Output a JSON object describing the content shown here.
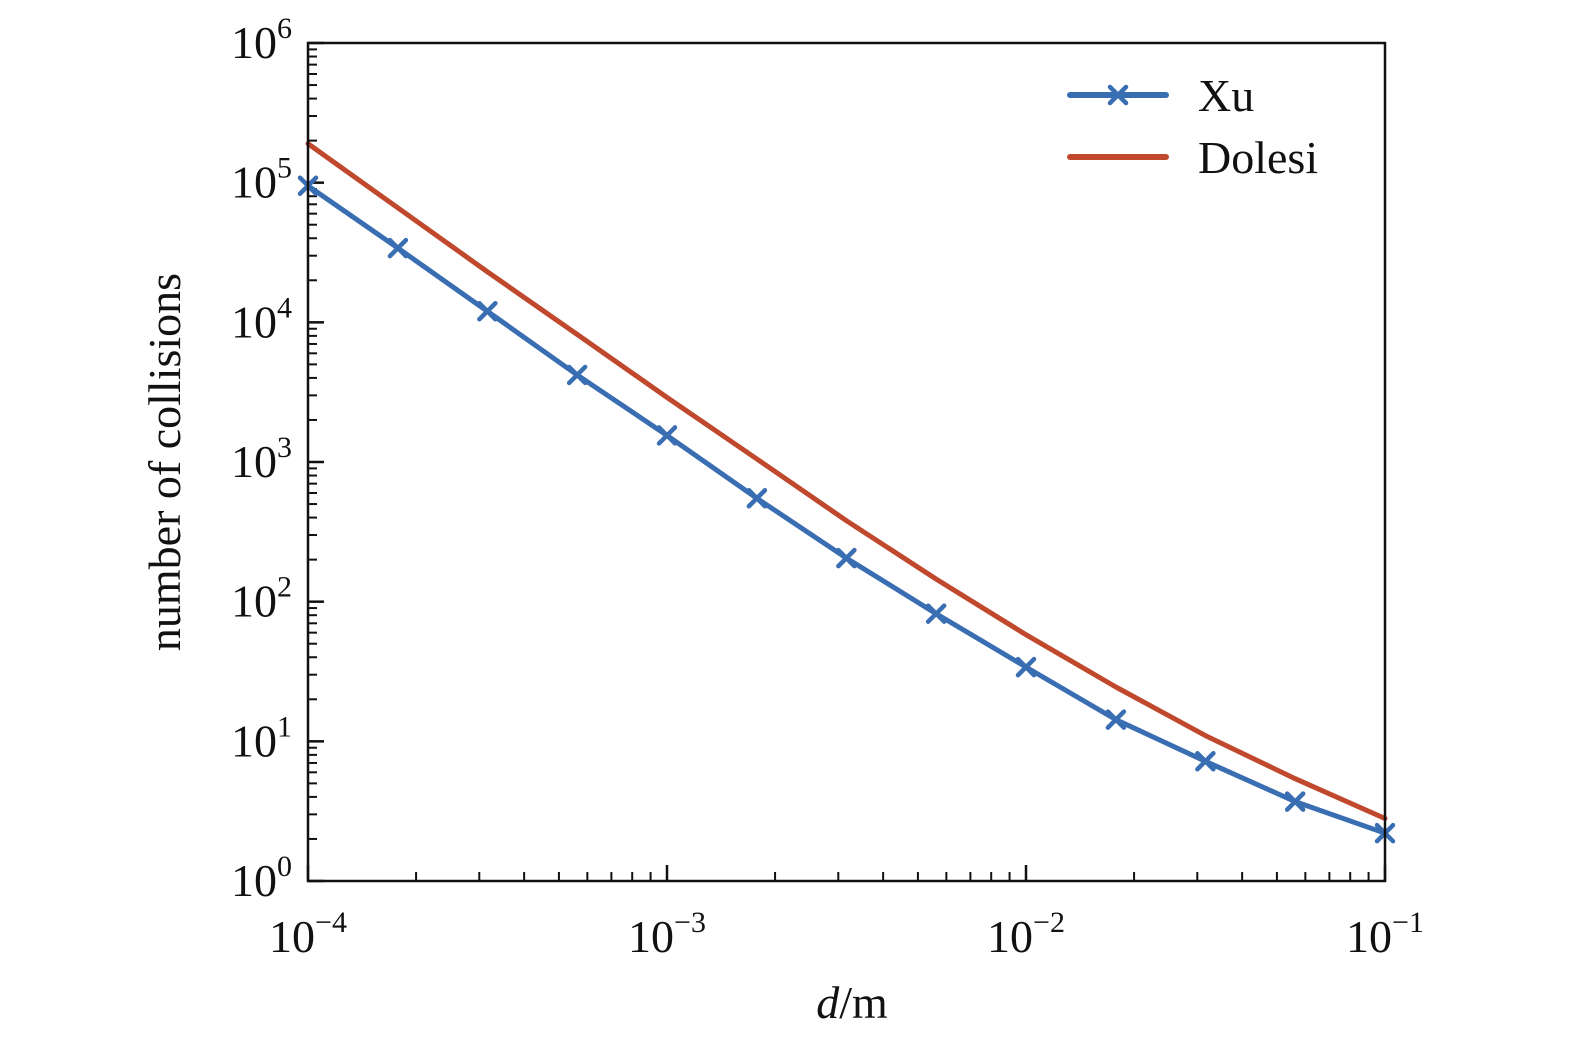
{
  "chart_data": {
    "type": "line",
    "x_scale": "log",
    "y_scale": "log",
    "xlabel": "d/m",
    "xlabel_parts": {
      "italic": "d",
      "rest": "/m"
    },
    "ylabel": "number of collisions",
    "xlim": [
      0.0001,
      0.1
    ],
    "ylim": [
      1,
      1000000
    ],
    "x_ticks": [
      {
        "value": 0.0001,
        "base": "10",
        "exp": "−4"
      },
      {
        "value": 0.001,
        "base": "10",
        "exp": "−3"
      },
      {
        "value": 0.01,
        "base": "10",
        "exp": "−2"
      },
      {
        "value": 0.1,
        "base": "10",
        "exp": "−1"
      }
    ],
    "y_ticks": [
      {
        "value": 1,
        "base": "10",
        "exp": "0"
      },
      {
        "value": 10,
        "base": "10",
        "exp": "1"
      },
      {
        "value": 100,
        "base": "10",
        "exp": "2"
      },
      {
        "value": 1000,
        "base": "10",
        "exp": "3"
      },
      {
        "value": 10000,
        "base": "10",
        "exp": "4"
      },
      {
        "value": 100000,
        "base": "10",
        "exp": "5"
      },
      {
        "value": 1000000,
        "base": "10",
        "exp": "6"
      }
    ],
    "grid": false,
    "legend_position": "top-right",
    "series": [
      {
        "name": "Xu",
        "color": "#3a6eb2",
        "marker": "x",
        "x": [
          0.0001,
          0.000178,
          0.000316,
          0.000562,
          0.001,
          0.00178,
          0.00316,
          0.00562,
          0.01,
          0.0178,
          0.0316,
          0.0562,
          0.1
        ],
        "y": [
          95000,
          34000,
          12000,
          4200,
          1550,
          550,
          205,
          82,
          34,
          14.3,
          7.2,
          3.7,
          2.2
        ]
      },
      {
        "name": "Dolesi",
        "color": "#c0482c",
        "marker": "none",
        "x": [
          0.0001,
          0.000178,
          0.000316,
          0.000562,
          0.001,
          0.00178,
          0.00316,
          0.00562,
          0.01,
          0.0178,
          0.0316,
          0.0562,
          0.1
        ],
        "y": [
          190000,
          66000,
          23000,
          8200,
          2900,
          1050,
          380,
          145,
          58,
          24.5,
          11,
          5.4,
          2.8
        ]
      }
    ]
  }
}
